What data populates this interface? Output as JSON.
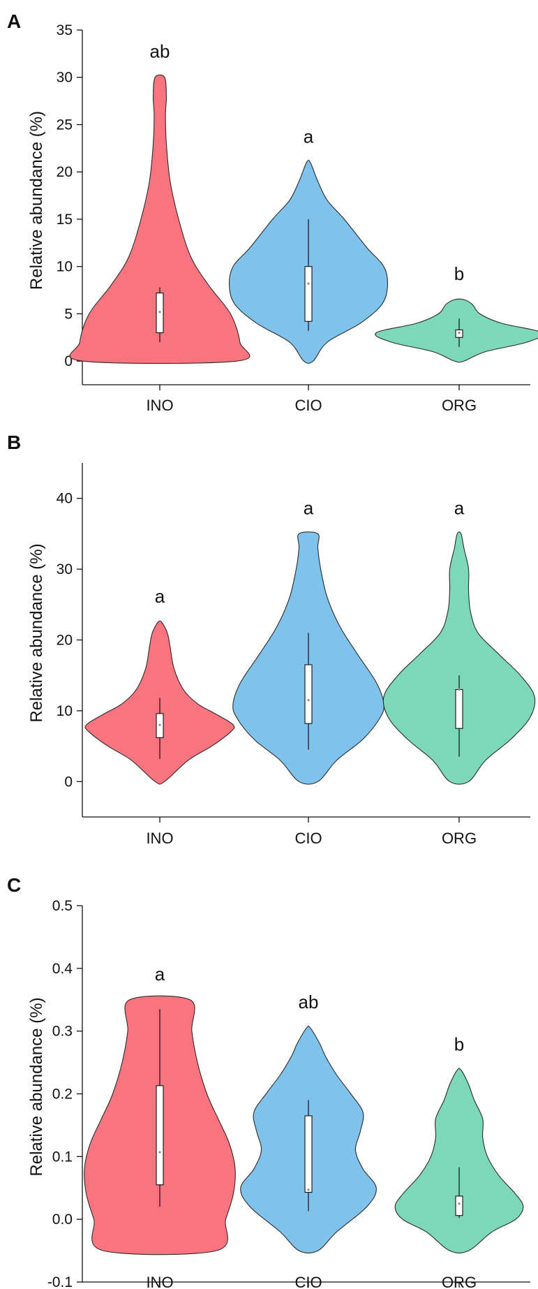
{
  "chart_data": [
    {
      "panel": "A",
      "type": "violin",
      "ylabel": "Relative abundance (%)",
      "ylim": [
        -2.5,
        35
      ],
      "yticks": [
        0,
        5,
        10,
        15,
        20,
        25,
        30,
        35
      ],
      "categories": [
        "INO",
        "CIO",
        "ORG"
      ],
      "colors": [
        "#F8747F",
        "#7FC2EC",
        "#7DD8BA"
      ],
      "groups": [
        {
          "name": "INO",
          "letter": "ab",
          "q1": 3,
          "q3": 7.2,
          "whisker_low": 2,
          "whisker_high": 7.8,
          "median": 5.2,
          "shape": [
            [
              0,
              0.82
            ],
            [
              2,
              0.85
            ],
            [
              5,
              0.75
            ],
            [
              8,
              0.52
            ],
            [
              11,
              0.33
            ],
            [
              15,
              0.2
            ],
            [
              19,
              0.11
            ],
            [
              23,
              0.07
            ],
            [
              26,
              0.06
            ],
            [
              28,
              0.07
            ],
            [
              30,
              0.05
            ]
          ]
        },
        {
          "name": "CIO",
          "letter": "a",
          "q1": 4.2,
          "q3": 10,
          "whisker_low": 3.2,
          "whisker_high": 15,
          "median": 8.2,
          "shape": [
            [
              0,
              0.05
            ],
            [
              2,
              0.2
            ],
            [
              4,
              0.55
            ],
            [
              6,
              0.78
            ],
            [
              8,
              0.84
            ],
            [
              10,
              0.8
            ],
            [
              12,
              0.62
            ],
            [
              15,
              0.38
            ],
            [
              17,
              0.2
            ],
            [
              19,
              0.1
            ],
            [
              21,
              0.02
            ]
          ]
        },
        {
          "name": "ORG",
          "letter": "b",
          "q1": 2.5,
          "q3": 3.3,
          "whisker_low": 1.5,
          "whisker_high": 4.5,
          "median": 3,
          "shape": [
            [
              0,
              0.05
            ],
            [
              1,
              0.28
            ],
            [
              2,
              0.72
            ],
            [
              3,
              0.88
            ],
            [
              4,
              0.45
            ],
            [
              5,
              0.22
            ],
            [
              6,
              0.14
            ],
            [
              6.5,
              0.05
            ]
          ]
        }
      ]
    },
    {
      "panel": "B",
      "type": "violin",
      "ylabel": "Relative abundance (%)",
      "ylim": [
        -5,
        45
      ],
      "yticks": [
        0,
        10,
        20,
        30,
        40
      ],
      "categories": [
        "INO",
        "CIO",
        "ORG"
      ],
      "colors": [
        "#F8747F",
        "#7FC2EC",
        "#7DD8BA"
      ],
      "groups": [
        {
          "name": "INO",
          "letter": "a",
          "q1": 6.2,
          "q3": 9.6,
          "whisker_low": 3.2,
          "whisker_high": 11.8,
          "median": 8,
          "shape": [
            [
              0,
              0.05
            ],
            [
              3,
              0.3
            ],
            [
              5,
              0.55
            ],
            [
              7,
              0.75
            ],
            [
              8,
              0.78
            ],
            [
              9.5,
              0.6
            ],
            [
              11,
              0.4
            ],
            [
              13,
              0.25
            ],
            [
              16,
              0.15
            ],
            [
              19,
              0.11
            ],
            [
              21,
              0.08
            ],
            [
              22.5,
              0.02
            ]
          ]
        },
        {
          "name": "CIO",
          "letter": "a",
          "q1": 8.2,
          "q3": 16.5,
          "whisker_low": 4.5,
          "whisker_high": 21,
          "median": 11.5,
          "shape": [
            [
              0,
              0.1
            ],
            [
              3,
              0.3
            ],
            [
              6,
              0.58
            ],
            [
              9,
              0.76
            ],
            [
              11,
              0.8
            ],
            [
              14,
              0.72
            ],
            [
              18,
              0.52
            ],
            [
              22,
              0.33
            ],
            [
              26,
              0.2
            ],
            [
              30,
              0.13
            ],
            [
              33,
              0.1
            ],
            [
              35,
              0.1
            ]
          ]
        },
        {
          "name": "ORG",
          "letter": "a",
          "q1": 7.5,
          "q3": 13,
          "whisker_low": 3.5,
          "whisker_high": 15,
          "median": 13,
          "shape": [
            [
              0,
              0.1
            ],
            [
              3,
              0.28
            ],
            [
              6,
              0.55
            ],
            [
              9,
              0.75
            ],
            [
              12,
              0.8
            ],
            [
              15,
              0.65
            ],
            [
              18,
              0.42
            ],
            [
              21,
              0.2
            ],
            [
              24,
              0.12
            ],
            [
              27,
              0.1
            ],
            [
              30,
              0.1
            ],
            [
              33,
              0.05
            ],
            [
              35,
              0.02
            ]
          ]
        }
      ]
    },
    {
      "panel": "C",
      "type": "violin",
      "ylabel": "Relative abundance (%)",
      "ylim": [
        -0.1,
        0.5
      ],
      "yticks": [
        -0.1,
        0.0,
        0.1,
        0.2,
        0.3,
        0.4,
        0.5
      ],
      "categories": [
        "INO",
        "CIO",
        "ORG"
      ],
      "colors": [
        "#F8747F",
        "#7FC2EC",
        "#7DD8BA"
      ],
      "groups": [
        {
          "name": "INO",
          "letter": "a",
          "q1": 0.055,
          "q3": 0.213,
          "whisker_low": 0.02,
          "whisker_high": 0.335,
          "median": 0.107,
          "shape": [
            [
              -0.05,
              0.6
            ],
            [
              0.0,
              0.7
            ],
            [
              0.04,
              0.78
            ],
            [
              0.08,
              0.8
            ],
            [
              0.12,
              0.74
            ],
            [
              0.16,
              0.62
            ],
            [
              0.2,
              0.5
            ],
            [
              0.25,
              0.4
            ],
            [
              0.3,
              0.34
            ],
            [
              0.35,
              0.32
            ]
          ]
        },
        {
          "name": "CIO",
          "letter": "ab",
          "q1": 0.043,
          "q3": 0.165,
          "whisker_low": 0.013,
          "whisker_high": 0.19,
          "median": 0.047,
          "shape": [
            [
              -0.05,
              0.1
            ],
            [
              -0.02,
              0.3
            ],
            [
              0.02,
              0.62
            ],
            [
              0.05,
              0.72
            ],
            [
              0.08,
              0.58
            ],
            [
              0.11,
              0.5
            ],
            [
              0.14,
              0.55
            ],
            [
              0.17,
              0.58
            ],
            [
              0.2,
              0.45
            ],
            [
              0.23,
              0.3
            ],
            [
              0.26,
              0.18
            ],
            [
              0.28,
              0.12
            ],
            [
              0.305,
              0.02
            ]
          ]
        },
        {
          "name": "ORG",
          "letter": "b",
          "q1": 0.006,
          "q3": 0.037,
          "whisker_low": 0.002,
          "whisker_high": 0.083,
          "median": 0.025,
          "shape": [
            [
              -0.05,
              0.1
            ],
            [
              -0.02,
              0.35
            ],
            [
              0.0,
              0.6
            ],
            [
              0.02,
              0.68
            ],
            [
              0.04,
              0.6
            ],
            [
              0.07,
              0.42
            ],
            [
              0.1,
              0.3
            ],
            [
              0.13,
              0.25
            ],
            [
              0.16,
              0.25
            ],
            [
              0.19,
              0.16
            ],
            [
              0.215,
              0.1
            ],
            [
              0.238,
              0.02
            ]
          ]
        }
      ]
    }
  ]
}
